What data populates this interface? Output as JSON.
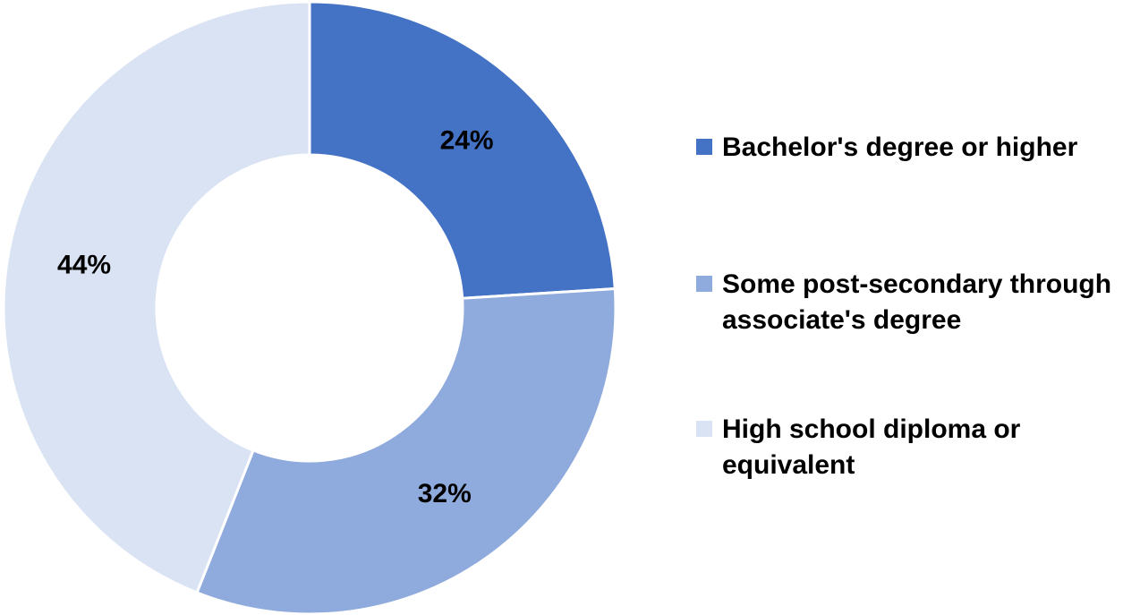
{
  "chart_data": {
    "type": "pie",
    "subtype": "donut",
    "title": "",
    "categories": [
      "Bachelor's degree or higher",
      "Some post-secondary through associate's degree",
      "High school diploma or equivalent"
    ],
    "values": [
      24,
      32,
      44
    ],
    "unit": "%",
    "data_labels": [
      "24%",
      "32%",
      "44%"
    ],
    "colors": [
      "#4472C4",
      "#8FAADC",
      "#DAE3F3"
    ],
    "legend_position": "right",
    "legend_lines": [
      [
        "Bachelor's degree or higher"
      ],
      [
        "Some post-secondary through",
        "associate's degree"
      ],
      [
        "High school diploma or",
        "equivalent"
      ]
    ]
  }
}
